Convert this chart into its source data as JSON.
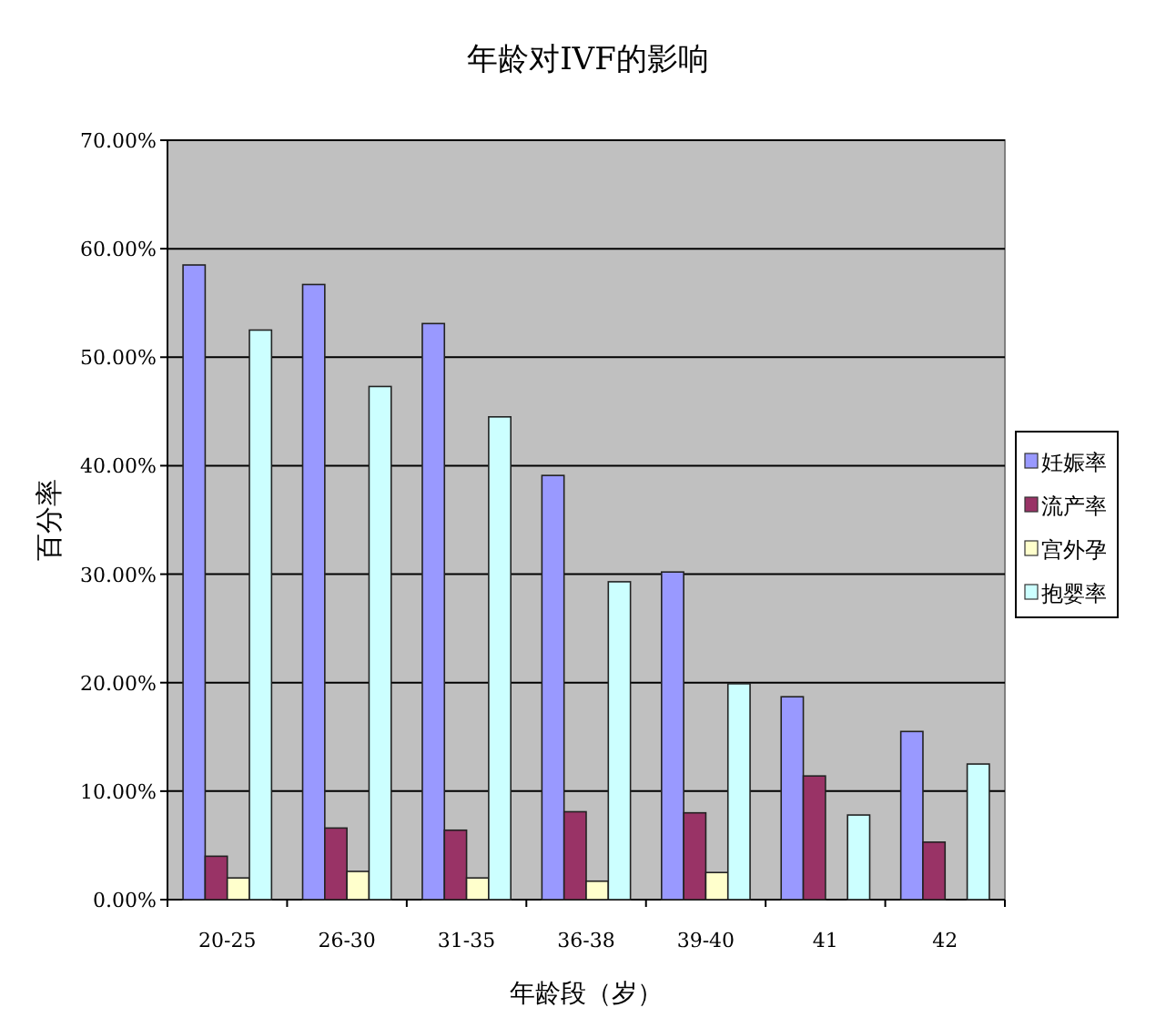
{
  "chart_data": {
    "type": "bar",
    "title": "年龄对IVF的影响",
    "xlabel": "年龄段（岁）",
    "ylabel": "百分率",
    "categories": [
      "20-25",
      "26-30",
      "31-35",
      "36-38",
      "39-40",
      "41",
      "42"
    ],
    "series": [
      {
        "name": "妊娠率",
        "color": "#9999ff",
        "values": [
          58.5,
          56.7,
          53.1,
          39.1,
          30.2,
          18.7,
          15.5
        ]
      },
      {
        "name": "流产率",
        "color": "#993366",
        "values": [
          4.0,
          6.6,
          6.4,
          8.1,
          8.0,
          11.4,
          5.3
        ]
      },
      {
        "name": "宫外孕",
        "color": "#ffffcc",
        "values": [
          2.0,
          2.6,
          2.0,
          1.7,
          2.5,
          null,
          null
        ]
      },
      {
        "name": "抱婴率",
        "color": "#ccffff",
        "values": [
          52.5,
          47.3,
          44.5,
          29.3,
          19.9,
          7.8,
          12.5
        ]
      }
    ],
    "ylim": [
      0,
      70
    ],
    "yticks": [
      {
        "value": 0,
        "label": "0.00%"
      },
      {
        "value": 10,
        "label": "10.00%"
      },
      {
        "value": 20,
        "label": "20.00%"
      },
      {
        "value": 30,
        "label": "30.00%"
      },
      {
        "value": 40,
        "label": "40.00%"
      },
      {
        "value": 50,
        "label": "50.00%"
      },
      {
        "value": 60,
        "label": "60.00%"
      },
      {
        "value": 70,
        "label": "70.00%"
      }
    ],
    "grid": "y",
    "legend": "right"
  }
}
